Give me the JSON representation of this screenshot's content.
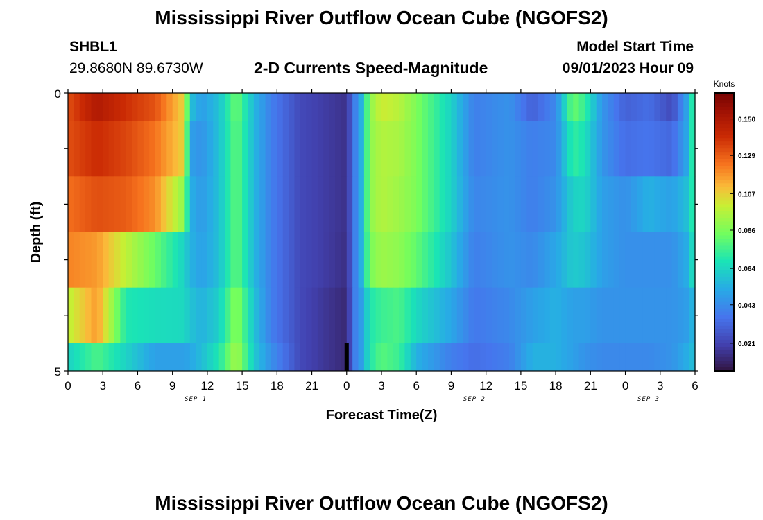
{
  "header": {
    "title": "Mississippi River Outflow Ocean Cube (NGOFS2)",
    "station": "SHBL1",
    "coords": "29.8680N  89.6730W",
    "subtitle": "2-D Currents Speed-Magnitude",
    "model_start_label": "Model Start Time",
    "model_start_value": "09/01/2023 Hour 09"
  },
  "footer": {
    "title_repeat": "Mississippi River Outflow Ocean Cube (NGOFS2)"
  },
  "chart_data": {
    "type": "heatmap",
    "xlabel": "Forecast Time(Z)",
    "ylabel": "Depth (ft)",
    "ylim": [
      0,
      5
    ],
    "y_ticks": [
      "0",
      "5"
    ],
    "x_tick_labels": [
      "0",
      "3",
      "6",
      "9",
      "12",
      "15",
      "18",
      "21",
      "0",
      "3",
      "6",
      "9",
      "12",
      "15",
      "18",
      "21",
      "0",
      "3",
      "6"
    ],
    "x_range_hours": [
      0,
      54
    ],
    "date_labels": [
      {
        "label": "SEP 1",
        "hour": 11
      },
      {
        "label": "SEP 2",
        "hour": 35
      },
      {
        "label": "SEP 3",
        "hour": 50
      }
    ],
    "model_start_marker_hour": 24,
    "colorbar": {
      "unit": "Knots",
      "ticks": [
        "0.150",
        "0.129",
        "0.107",
        "0.086",
        "0.064",
        "0.043",
        "0.021"
      ],
      "range": [
        0.005,
        0.165
      ]
    },
    "depth_bands": [
      "0-0.5",
      "0.5-1.5",
      "1.5-2.5",
      "2.5-3.5",
      "3.5-4.5",
      "4.5-5"
    ],
    "keyframes_hours": [
      0,
      2.5,
      5,
      7.5,
      10,
      10.5,
      11.5,
      13,
      14.5,
      16,
      17.5,
      20,
      22,
      24,
      24.7,
      25.3,
      26,
      27,
      28.5,
      30,
      33,
      35,
      38,
      40,
      42,
      43.5,
      44.5,
      46,
      48,
      50,
      52,
      53.5,
      54
    ],
    "speed_by_band": [
      [
        0.133,
        0.15,
        0.14,
        0.132,
        0.107,
        0.06,
        0.049,
        0.059,
        0.084,
        0.057,
        0.04,
        0.024,
        0.02,
        0.016,
        0.04,
        0.056,
        0.09,
        0.102,
        0.098,
        0.087,
        0.064,
        0.04,
        0.046,
        0.031,
        0.043,
        0.084,
        0.074,
        0.047,
        0.031,
        0.035,
        0.024,
        0.055,
        0.086
      ],
      [
        0.133,
        0.141,
        0.135,
        0.125,
        0.107,
        0.05,
        0.046,
        0.059,
        0.082,
        0.057,
        0.04,
        0.024,
        0.02,
        0.016,
        0.04,
        0.056,
        0.09,
        0.097,
        0.095,
        0.087,
        0.064,
        0.04,
        0.046,
        0.04,
        0.043,
        0.074,
        0.068,
        0.047,
        0.035,
        0.037,
        0.033,
        0.055,
        0.086
      ],
      [
        0.126,
        0.133,
        0.13,
        0.12,
        0.09,
        0.055,
        0.048,
        0.059,
        0.082,
        0.057,
        0.04,
        0.024,
        0.02,
        0.016,
        0.04,
        0.056,
        0.09,
        0.097,
        0.093,
        0.087,
        0.064,
        0.042,
        0.046,
        0.04,
        0.046,
        0.064,
        0.065,
        0.05,
        0.045,
        0.055,
        0.05,
        0.06,
        0.08
      ],
      [
        0.122,
        0.118,
        0.099,
        0.083,
        0.064,
        0.056,
        0.05,
        0.059,
        0.082,
        0.057,
        0.04,
        0.024,
        0.02,
        0.015,
        0.04,
        0.056,
        0.086,
        0.093,
        0.09,
        0.082,
        0.06,
        0.04,
        0.046,
        0.043,
        0.052,
        0.062,
        0.06,
        0.05,
        0.045,
        0.045,
        0.045,
        0.055,
        0.075
      ],
      [
        0.099,
        0.118,
        0.07,
        0.067,
        0.066,
        0.06,
        0.055,
        0.063,
        0.09,
        0.06,
        0.04,
        0.024,
        0.018,
        0.013,
        0.04,
        0.05,
        0.07,
        0.075,
        0.078,
        0.066,
        0.052,
        0.038,
        0.043,
        0.05,
        0.055,
        0.05,
        0.05,
        0.046,
        0.046,
        0.046,
        0.046,
        0.05,
        0.06
      ],
      [
        0.064,
        0.078,
        0.064,
        0.05,
        0.05,
        0.052,
        0.058,
        0.07,
        0.095,
        0.062,
        0.045,
        0.024,
        0.018,
        0.013,
        0.04,
        0.05,
        0.07,
        0.08,
        0.075,
        0.055,
        0.04,
        0.035,
        0.04,
        0.055,
        0.055,
        0.05,
        0.046,
        0.043,
        0.043,
        0.043,
        0.046,
        0.055,
        0.06
      ]
    ]
  }
}
